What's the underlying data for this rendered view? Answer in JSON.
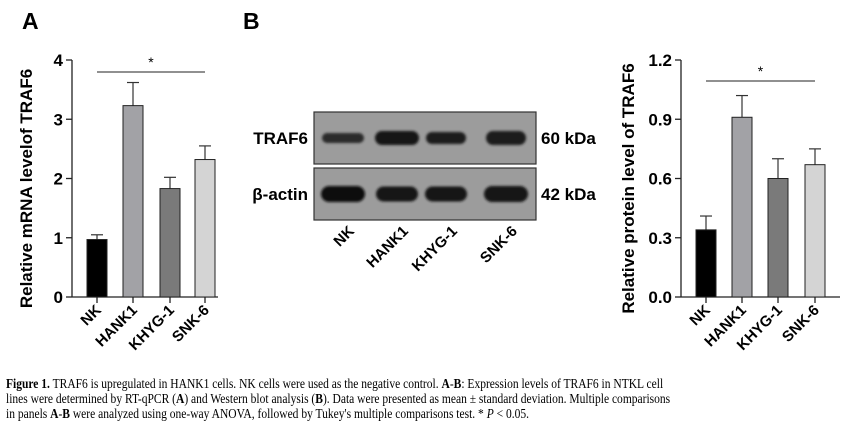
{
  "panels": {
    "a_label": "A",
    "b_label": "B"
  },
  "blot": {
    "rows": [
      {
        "protein": "TRAF6",
        "size": "60 kDa"
      },
      {
        "protein": "β-actin",
        "size": "42 kDa"
      }
    ],
    "lanes": [
      "NK",
      "HANK1",
      "KHYG-1",
      "SNK-6"
    ]
  },
  "chart_data": [
    {
      "type": "bar",
      "panel": "A",
      "categories": [
        "NK",
        "HANK1",
        "KHYG-1",
        "SNK-6"
      ],
      "values": [
        0.97,
        3.23,
        1.83,
        2.32
      ],
      "error_upper": [
        1.05,
        3.62,
        2.02,
        2.55
      ],
      "colors": [
        "#000000",
        "#a2a2a6",
        "#7a7a7a",
        "#d4d4d4"
      ],
      "ylabel": "Relative mRNA levelof TRAF6",
      "ylim": [
        0,
        4
      ],
      "yticks": [
        "0",
        "1",
        "2",
        "3",
        "4"
      ],
      "significance": {
        "from": "NK",
        "to": "SNK-6",
        "label": "*"
      },
      "grid": false
    },
    {
      "type": "bar",
      "panel": "B",
      "categories": [
        "NK",
        "HANK1",
        "KHYG-1",
        "SNK-6"
      ],
      "values": [
        0.34,
        0.91,
        0.6,
        0.67
      ],
      "error_upper": [
        0.41,
        1.02,
        0.7,
        0.75
      ],
      "colors": [
        "#000000",
        "#a2a2a6",
        "#7a7a7a",
        "#d4d4d4"
      ],
      "ylabel": "Relative protein level of TRAF6",
      "ylim": [
        0,
        1.2
      ],
      "yticks": [
        "0.0",
        "0.3",
        "0.6",
        "0.9",
        "1.2"
      ],
      "significance": {
        "from": "NK",
        "to": "SNK-6",
        "label": "*"
      },
      "grid": false
    }
  ],
  "caption": {
    "lines": [
      [
        {
          "t": "Figure 1.",
          "b": true
        },
        {
          "t": " TRAF6 is upregulated in HANK1 cells. NK cells were used as the negative control. "
        },
        {
          "t": "A",
          "b": true
        },
        {
          "t": "-"
        },
        {
          "t": "B",
          "b": true
        },
        {
          "t": ": Expression levels of TRAF6 in NTKL cell"
        }
      ],
      [
        {
          "t": "lines were determined by RT-qPCR ("
        },
        {
          "t": "A",
          "b": true
        },
        {
          "t": ") and Western blot analysis ("
        },
        {
          "t": "B",
          "b": true
        },
        {
          "t": "). Data were presented as mean ± standard deviation. Multiple comparisons"
        }
      ],
      [
        {
          "t": "in panels "
        },
        {
          "t": "A",
          "b": true
        },
        {
          "t": "-"
        },
        {
          "t": "B",
          "b": true
        },
        {
          "t": " were analyzed using one-way ANOVA, followed by Tukey's multiple comparisons test. * "
        },
        {
          "t": "P",
          "i": true
        },
        {
          "t": " < 0.05."
        }
      ]
    ]
  }
}
